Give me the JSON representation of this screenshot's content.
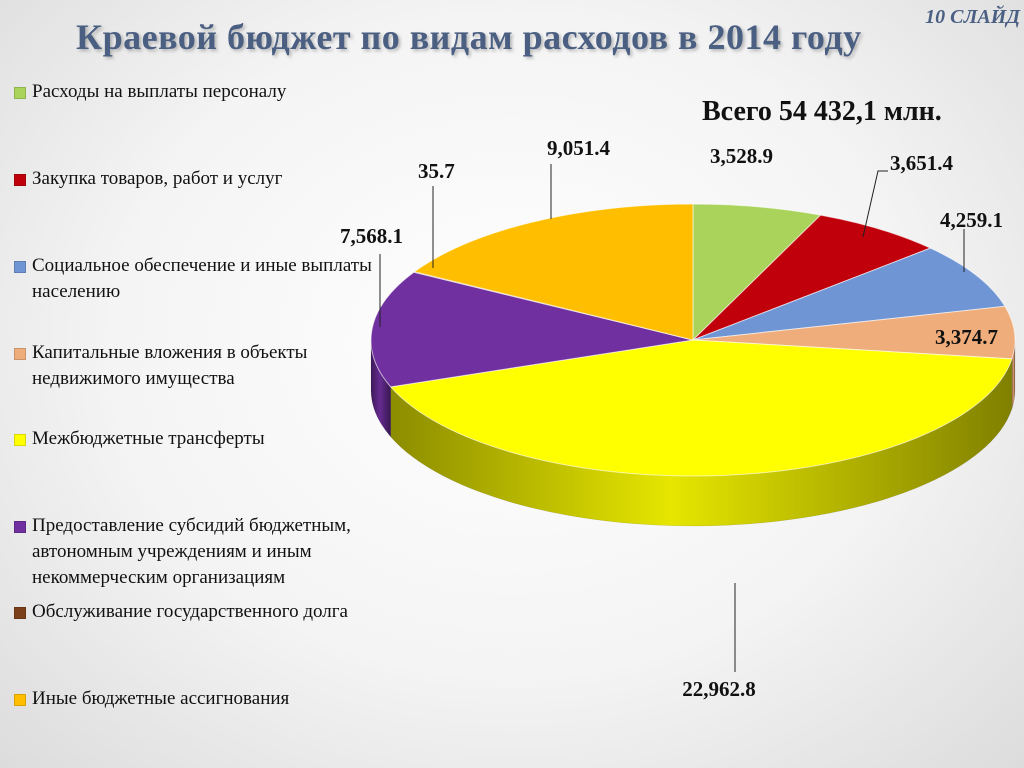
{
  "slide": {
    "number_label": "10 СЛАЙД"
  },
  "header": {
    "title": "Краевой бюджет по видам расходов в 2014 году"
  },
  "total_label": "Всего 54 432,1 млн.",
  "chart_data": {
    "type": "pie",
    "title": "Краевой бюджет по видам расходов в 2014 году",
    "total": "Всего 54 432,1 млн.",
    "legend_position": "left",
    "series": [
      {
        "name": "Расходы на выплаты персоналу",
        "value": 3528.9,
        "label": "3,528.9",
        "color": "#a9d35b"
      },
      {
        "name": "Закупка товаров, работ и услуг",
        "value": 3651.4,
        "label": "3,651.4",
        "color": "#c0000b"
      },
      {
        "name": "Социальное обеспечение и иные выплаты населению",
        "value": 4259.1,
        "label": "4,259.1",
        "color": "#6f95d4"
      },
      {
        "name": "Капитальные вложения в объекты недвижимого имущества",
        "value": 3374.7,
        "label": "3,374.7",
        "color": "#efad7b"
      },
      {
        "name": "Межбюджетные трансферты",
        "value": 22962.8,
        "label": "22,962.8",
        "color": "#ffff00"
      },
      {
        "name": "Предоставление субсидий бюджетным, автономным учреждениям и иным некоммерческим организациям",
        "value": 7568.1,
        "label": "7,568.1",
        "color": "#7030a0"
      },
      {
        "name": "Обслуживание государственного долга",
        "value": 35.7,
        "label": "35.7",
        "color": "#7b3f1a"
      },
      {
        "name": "Иные бюджетные ассигнования",
        "value": 9051.4,
        "label": "9,051.4",
        "color": "#ffbf00"
      }
    ]
  }
}
